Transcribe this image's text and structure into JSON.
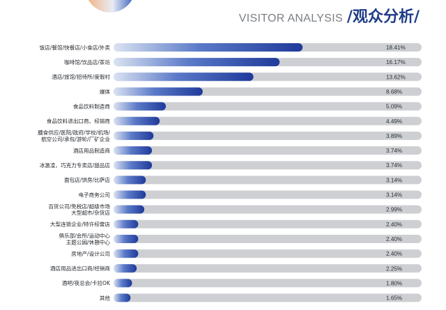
{
  "header": {
    "title_en": "VISITOR ANALYSIS",
    "title_cn": "/观众分析/"
  },
  "colors": {
    "track": "#cdcfd2",
    "bar_start": "#dbe3f2",
    "bar_mid": "#5b7ac8",
    "bar_end": "#1f3a9a",
    "title": "#1e3c86"
  },
  "chart_data": {
    "type": "bar",
    "orientation": "horizontal",
    "xlim": [
      0,
      30
    ],
    "categories": [
      [
        "饭店/餐馆/快餐店/小食店/外卖"
      ],
      [
        "咖啡馆/饮品店/茶坊"
      ],
      [
        "酒店/旅馆/招待所/度假村"
      ],
      [
        "媒体"
      ],
      [
        "食品饮料制造商"
      ],
      [
        "食品饮料进出口商、经销商"
      ],
      [
        "膳食供应/医院/政府/学校/机场/",
        "航空公司/承包/游轮/厂矿企业"
      ],
      [
        "酒店用品制造商"
      ],
      [
        "冰激凌、巧克力专卖店/甜品店"
      ],
      [
        "面包店/饼房/比萨店"
      ],
      [
        "电子商务公司"
      ],
      [
        "百货公司/免税店/超级市场",
        "大型超市/杂货店"
      ],
      [
        "大型连锁企业/特许经营店"
      ],
      [
        "俱乐部/会所/运动中心",
        "主题公园/休憩中心"
      ],
      [
        "房地产/设计公司"
      ],
      [
        "酒店用品进出口商/经销商"
      ],
      [
        "酒吧/夜总会/卡拉OK"
      ],
      [
        "其他"
      ]
    ],
    "values": [
      18.41,
      16.17,
      13.62,
      8.68,
      5.09,
      4.49,
      3.89,
      3.74,
      3.74,
      3.14,
      3.14,
      2.99,
      2.4,
      2.4,
      2.4,
      2.25,
      1.8,
      1.65
    ],
    "value_labels": [
      "18.41%",
      "16.17%",
      "13.62%",
      "8.68%",
      "5.09%",
      "4.49%",
      "3.89%",
      "3.74%",
      "3.74%",
      "3.14%",
      "3.14%",
      "2.99%",
      "2.40%",
      "2.40%",
      "2.40%",
      "2.25%",
      "1.80%",
      "1.65%"
    ]
  }
}
